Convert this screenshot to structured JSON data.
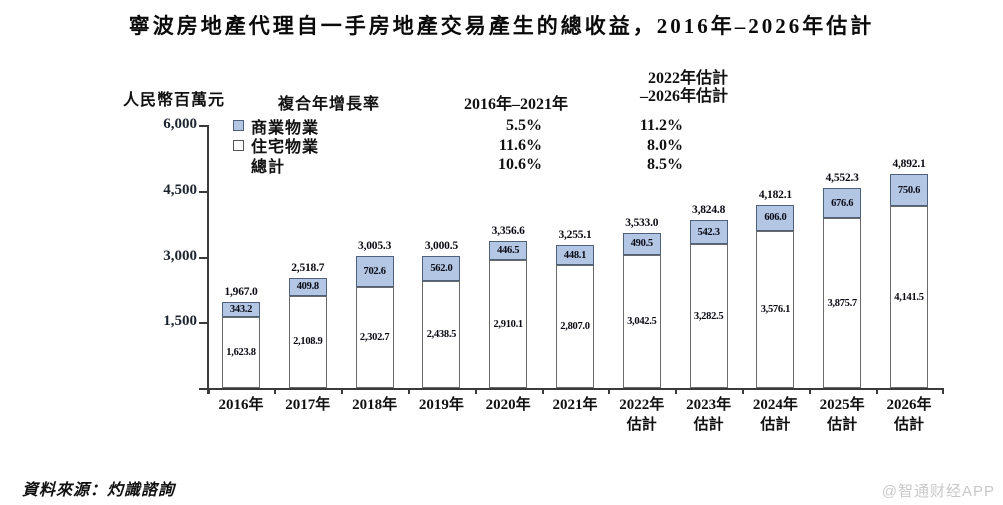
{
  "title": "寧波房地產代理自一手房地產交易產生的總收益，2016年–2026年估計",
  "y_axis_unit": "人民幣百萬元",
  "cagr_table": {
    "header": "複合年增長率",
    "col1_header": "2016年–2021年",
    "col2_header_line1": "2022年估計",
    "col2_header_line2": "–2026年估計",
    "rows": [
      {
        "label": "商業物業",
        "swatch": "commercial",
        "col1": "5.5%",
        "col2": "11.2%"
      },
      {
        "label": "住宅物業",
        "swatch": "residential",
        "col1": "11.6%",
        "col2": "8.0%"
      },
      {
        "label": "總計",
        "swatch": "none",
        "col1": "10.6%",
        "col2": "8.5%"
      }
    ]
  },
  "chart_data": {
    "type": "bar",
    "stacked": true,
    "title": "寧波房地產代理自一手房地產交易產生的總收益，2016年–2026年估計",
    "ylabel": "人民幣百萬元",
    "xlabel": "",
    "ylim": [
      0,
      6000
    ],
    "grid": false,
    "legend_position": "top-left",
    "categories": [
      {
        "year": "2016年",
        "est": ""
      },
      {
        "year": "2017年",
        "est": ""
      },
      {
        "year": "2018年",
        "est": ""
      },
      {
        "year": "2019年",
        "est": ""
      },
      {
        "year": "2020年",
        "est": ""
      },
      {
        "year": "2021年",
        "est": ""
      },
      {
        "year": "2022年",
        "est": "估計"
      },
      {
        "year": "2023年",
        "est": "估計"
      },
      {
        "year": "2024年",
        "est": "估計"
      },
      {
        "year": "2025年",
        "est": "估計"
      },
      {
        "year": "2026年",
        "est": "估計"
      }
    ],
    "series": [
      {
        "name": "住宅物業",
        "color": "#ffffff",
        "values": [
          1623.8,
          2108.9,
          2302.7,
          2438.5,
          2910.1,
          2807.0,
          3042.5,
          3282.5,
          3576.1,
          3875.7,
          4141.5
        ],
        "labels": [
          "1,623.8",
          "2,108.9",
          "2,302.7",
          "2,438.5",
          "2,910.1",
          "2,807.0",
          "3,042.5",
          "3,282.5",
          "3,576.1",
          "3,875.7",
          "4,141.5"
        ]
      },
      {
        "name": "商業物業",
        "color": "#b3c6e4",
        "values": [
          343.2,
          409.8,
          702.6,
          562.0,
          446.5,
          448.1,
          490.5,
          542.3,
          606.0,
          676.6,
          750.6
        ],
        "labels": [
          "343.2",
          "409.8",
          "702.6",
          "562.0",
          "446.5",
          "448.1",
          "490.5",
          "542.3",
          "606.0",
          "676.6",
          "750.6"
        ]
      }
    ],
    "totals": [
      1967.0,
      2518.7,
      3005.3,
      3000.5,
      3356.6,
      3255.1,
      3533.0,
      3824.8,
      4182.1,
      4552.3,
      4892.1
    ],
    "total_labels": [
      "1,967.0",
      "2,518.7",
      "3,005.3",
      "3,000.5",
      "3,356.6",
      "3,255.1",
      "3,533.0",
      "3,824.8",
      "4,182.1",
      "4,552.3",
      "4,892.1"
    ],
    "y_ticks": [
      {
        "value": 1500,
        "label": "1,500"
      },
      {
        "value": 3000,
        "label": "3,000"
      },
      {
        "value": 4500,
        "label": "4,500"
      },
      {
        "value": 6000,
        "label": "6,000"
      }
    ]
  },
  "source": "資料來源：灼識諮詢",
  "watermark": "@智通财经APP",
  "colors": {
    "commercial": "#b3c6e4",
    "commercial_border": "#4f617a",
    "residential": "#ffffff",
    "residential_border": "#6a6a6a",
    "axis": "#3a3a3a",
    "watermark": "#c9c9c9"
  }
}
